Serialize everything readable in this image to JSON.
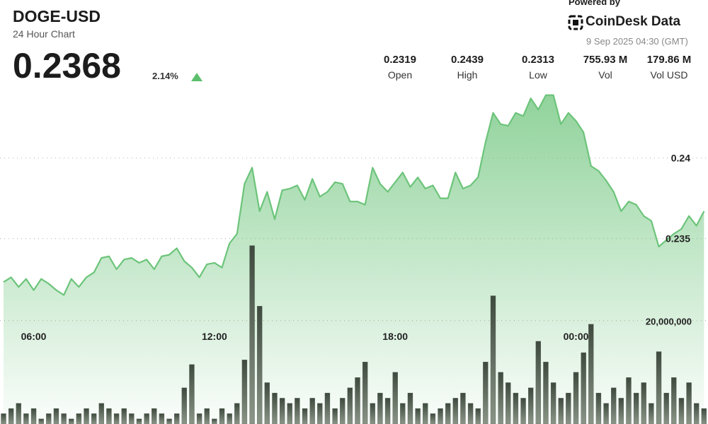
{
  "header": {
    "symbol": "DOGE-USD",
    "subtitle": "24 Hour Chart",
    "price": "0.2368",
    "change": "2.14%",
    "powered_by": "Powered by",
    "brand": "CoinDesk Data",
    "timestamp": "9 Sep 2025 04:30 (GMT)"
  },
  "stats": [
    {
      "value": "0.2319",
      "label": "Open"
    },
    {
      "value": "0.2439",
      "label": "High"
    },
    {
      "value": "0.2313",
      "label": "Low"
    },
    {
      "value": "755.93 M",
      "label": "Vol"
    },
    {
      "value": "179.86 M",
      "label": "Vol USD"
    }
  ],
  "chart_data": {
    "type": "line",
    "categories": [
      null,
      null,
      null,
      null,
      "06:00",
      null,
      null,
      null,
      null,
      null,
      null,
      null,
      null,
      null,
      null,
      null,
      null,
      null,
      null,
      null,
      null,
      null,
      null,
      null,
      null,
      null,
      null,
      null,
      "12:00",
      null,
      null,
      null,
      null,
      null,
      null,
      null,
      null,
      null,
      null,
      null,
      null,
      null,
      null,
      null,
      null,
      null,
      null,
      null,
      null,
      null,
      null,
      null,
      "18:00",
      null,
      null,
      null,
      null,
      null,
      null,
      null,
      null,
      null,
      null,
      null,
      null,
      null,
      null,
      null,
      null,
      null,
      null,
      null,
      null,
      null,
      null,
      null,
      "00:00",
      null,
      null,
      null,
      null,
      null,
      null,
      null,
      null,
      null,
      null,
      null,
      null,
      null,
      null,
      null,
      null,
      null
    ],
    "series": [
      {
        "type": "line",
        "color": "#6cc47a",
        "values": [
          0.2323,
          0.2326,
          0.232,
          0.2325,
          0.2318,
          0.2325,
          0.2322,
          0.2318,
          0.2315,
          0.2325,
          0.232,
          0.2326,
          0.2329,
          0.2338,
          0.2339,
          0.2331,
          0.2337,
          0.2338,
          0.2335,
          0.2337,
          0.2331,
          0.2339,
          0.234,
          0.2344,
          0.2336,
          0.2332,
          0.2326,
          0.2334,
          0.2335,
          0.2332,
          0.2347,
          0.2353,
          0.2384,
          0.2394,
          0.2367,
          0.2379,
          0.2362,
          0.238,
          0.2381,
          0.2383,
          0.2374,
          0.2387,
          0.2376,
          0.2379,
          0.2385,
          0.2384,
          0.2373,
          0.2373,
          0.2371,
          0.2394,
          0.2384,
          0.2379,
          0.2385,
          0.2391,
          0.2382,
          0.2388,
          0.2381,
          0.2383,
          0.2375,
          0.2375,
          0.2391,
          0.2381,
          0.2383,
          0.2388,
          0.241,
          0.2428,
          0.2421,
          0.242,
          0.2428,
          0.2426,
          0.2437,
          0.243,
          0.2439,
          0.2439,
          0.2421,
          0.2428,
          0.2423,
          0.2416,
          0.2395,
          0.2392,
          0.2386,
          0.2379,
          0.2367,
          0.2373,
          0.2371,
          0.2364,
          0.2361,
          0.2345,
          0.2349,
          0.2353,
          0.2356,
          0.2364,
          0.2358,
          0.2367
        ]
      },
      {
        "type": "bar",
        "axis": "y2",
        "color": "#4e5a4d",
        "values": [
          2000000,
          3000000,
          4000000,
          2000000,
          3000000,
          1000000,
          2000000,
          3000000,
          2000000,
          1000000,
          2000000,
          3000000,
          2000000,
          4000000,
          3000000,
          2000000,
          3000000,
          2000000,
          1000000,
          2000000,
          3000000,
          2000000,
          1000000,
          2000000,
          7000000,
          11500000,
          2000000,
          3000000,
          1000000,
          3000000,
          2000000,
          4000000,
          12400000,
          34500000,
          22800000,
          8000000,
          6000000,
          5000000,
          4000000,
          5000000,
          3000000,
          5000000,
          4000000,
          6000000,
          3000000,
          5000000,
          7000000,
          9000000,
          12000000,
          4000000,
          6000000,
          5000000,
          10000000,
          4000000,
          6000000,
          3000000,
          4000000,
          2000000,
          3000000,
          4000000,
          5000000,
          6000000,
          4000000,
          3000000,
          12000000,
          24800000,
          10000000,
          8000000,
          6000000,
          5000000,
          7000000,
          16000000,
          12000000,
          8000000,
          5000000,
          6000000,
          10000000,
          13800000,
          19300000,
          6000000,
          4000000,
          7000000,
          5000000,
          9000000,
          6000000,
          8000000,
          4000000,
          14000000,
          6000000,
          9000000,
          5000000,
          8000000,
          4000000,
          3000000
        ]
      }
    ],
    "ylim": [
      0.2235,
      0.2498
    ],
    "yticks": [
      0.235,
      0.24
    ],
    "y2lim": [
      0,
      82000000
    ],
    "y2ticks": [
      {
        "value": 20000000,
        "label": "20,000,000"
      }
    ],
    "grid": true
  }
}
